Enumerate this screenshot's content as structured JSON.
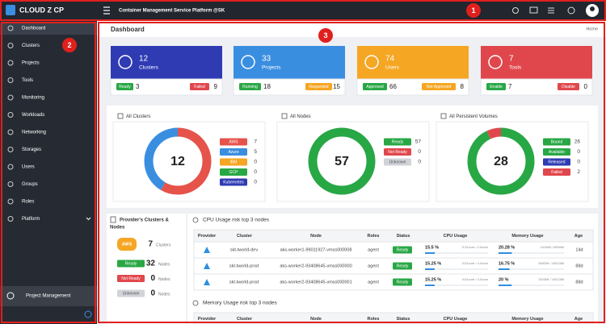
{
  "header": {
    "brand": "CLOUD Z CP",
    "title": "Container Management Service Platform @SK"
  },
  "annotations": [
    "1",
    "2",
    "3"
  ],
  "sidebar": {
    "items": [
      "Dashboard",
      "Clusters",
      "Projects",
      "Tools",
      "Monitoring",
      "Workloads",
      "Networking",
      "Storages",
      "Users",
      "Groups",
      "Roles",
      "Platform"
    ],
    "footer": "Project Management"
  },
  "page": {
    "title": "Dashboard",
    "breadcrumb": "Home"
  },
  "cards": [
    {
      "count": 12,
      "label": "Clusters",
      "color": "#2f3bb3",
      "stats": [
        {
          "label": "Ready",
          "value": 3,
          "color": "#28a745"
        },
        {
          "label": "Failed",
          "value": 9,
          "color": "#e0474c"
        }
      ]
    },
    {
      "count": 33,
      "label": "Projects",
      "color": "#3a8ee0",
      "stats": [
        {
          "label": "Running",
          "value": 18,
          "color": "#28a745"
        },
        {
          "label": "Requested",
          "value": 15,
          "color": "#f5a623"
        }
      ]
    },
    {
      "count": 74,
      "label": "Users",
      "color": "#f5a623",
      "stats": [
        {
          "label": "Approved",
          "value": 66,
          "color": "#28a745"
        },
        {
          "label": "Not Approved",
          "value": 8,
          "color": "#f5a623"
        }
      ]
    },
    {
      "count": 7,
      "label": "Tools",
      "color": "#e0474c",
      "stats": [
        {
          "label": "Enable",
          "value": 7,
          "color": "#28a745"
        },
        {
          "label": "Disable",
          "value": 0,
          "color": "#e0474c"
        }
      ]
    }
  ],
  "donuts": [
    {
      "title": "All Clusters",
      "total": 12,
      "items": [
        {
          "label": "AWS",
          "value": 7,
          "color": "#e5534b"
        },
        {
          "label": "Azure",
          "value": 5,
          "color": "#3a8ee0"
        },
        {
          "label": "IBM",
          "value": 0,
          "color": "#f5a623"
        },
        {
          "label": "GCP",
          "value": 0,
          "color": "#28a745"
        },
        {
          "label": "Kubernetes",
          "value": 0,
          "color": "#2f3bb3"
        }
      ]
    },
    {
      "title": "All Nodes",
      "total": 57,
      "items": [
        {
          "label": "Ready",
          "value": 57,
          "color": "#28a745"
        },
        {
          "label": "Not Ready",
          "value": 0,
          "color": "#e0474c"
        },
        {
          "label": "Unknown",
          "value": 0,
          "color": "#d0d3d8"
        }
      ]
    },
    {
      "title": "All Persistent Volumes",
      "total": 28,
      "items": [
        {
          "label": "Bound",
          "value": 26,
          "color": "#28a745"
        },
        {
          "label": "Available",
          "value": 0,
          "color": "#28a745"
        },
        {
          "label": "Released",
          "value": 0,
          "color": "#2f3bb3"
        },
        {
          "label": "Failed",
          "value": 2,
          "color": "#e0474c"
        }
      ]
    }
  ],
  "providers": {
    "title_lines": [
      "Provider's Clusters &",
      "Nodes"
    ],
    "provider": "AWS",
    "clusters": 7,
    "clusters_unit": "Clusters",
    "nodes_unit": "Nodes",
    "nodes": [
      {
        "label": "Ready",
        "value": 32,
        "color": "#28a745"
      },
      {
        "label": "Not Ready",
        "value": 0,
        "color": "#e0474c"
      },
      {
        "label": "Unknown",
        "value": 0,
        "color": "#d0d3d8"
      }
    ]
  },
  "tables": [
    {
      "title": "CPU Usage risk top 3 nodes",
      "columns": [
        "Provider",
        "Cluster",
        "Node",
        "Roles",
        "Status",
        "CPU Usage",
        "Memory Usage",
        "Age"
      ],
      "rows": [
        {
          "cluster": "skt-tworld-dev",
          "node": "aks-worker1-99011927-vmss000008",
          "role": "agent",
          "status": "Ready",
          "cpu": {
            "value": 15.5,
            "label": "15.5 %"
          },
          "cpu_detail": "0.31core / 2.0core",
          "memory": {
            "value": 20.28,
            "label": "20.28 %"
          },
          "memory_detail": "1410Mi / 6954Mi",
          "age": "14d"
        },
        {
          "cluster": "skt-tworld-prod",
          "node": "aks-worker2-93408645-vmss000000",
          "role": "agent",
          "status": "Ready",
          "cpu": {
            "value": 15.25,
            "label": "15.25 %"
          },
          "cpu_detail": "0.61core / 4.0core",
          "memory": {
            "value": 16.75,
            "label": "16.75 %"
          },
          "memory_detail": "2682Mi / 16013Mi",
          "age": "88d"
        },
        {
          "cluster": "skt-tworld-prod",
          "node": "aks-worker2-93408645-vmss000001",
          "role": "agent",
          "status": "Ready",
          "cpu": {
            "value": 15.25,
            "label": "15.25 %"
          },
          "cpu_detail": "0.61core / 4.0core",
          "memory": {
            "value": 20,
            "label": "20 %"
          },
          "memory_detail": "3203Mi / 16013Mi",
          "age": "88d"
        }
      ]
    },
    {
      "title": "Memory Usage risk top 3 nodes",
      "columns": [
        "Provider",
        "Cluster",
        "Node",
        "Roles",
        "Status",
        "CPU Usage",
        "Memory Usage",
        "Age"
      ]
    }
  ]
}
